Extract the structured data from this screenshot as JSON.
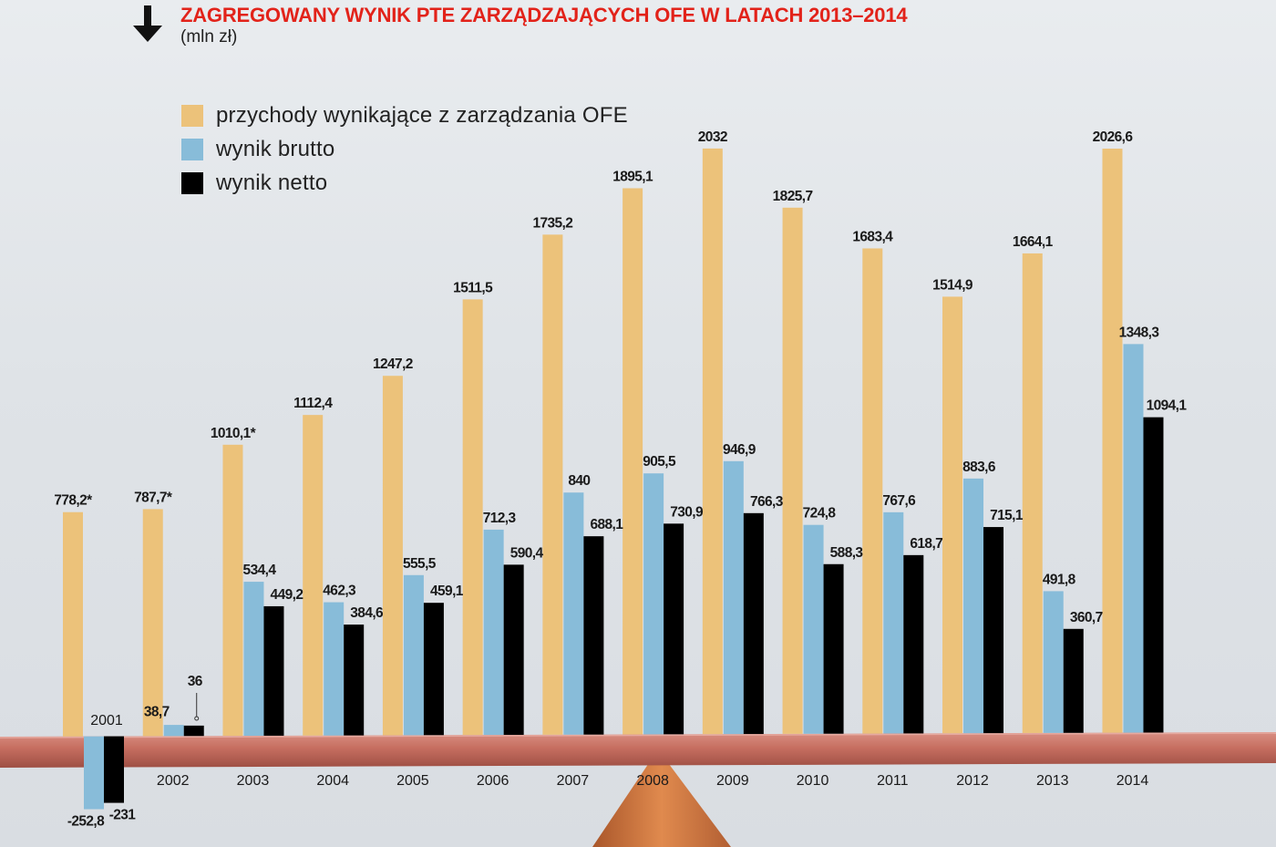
{
  "title": "ZAGREGOWANY WYNIK PTE ZARZĄDZAJĄCYCH OFE W LATACH 2013–2014",
  "subtitle": "(mln zł)",
  "colors": {
    "przychody": "#ecc27a",
    "brutto": "#88bcd9",
    "netto": "#000000",
    "title": "#e2231a",
    "beam": "#c66e60"
  },
  "legend": [
    {
      "label": "przychody wynikające z zarządzania OFE",
      "color": "#ecc27a"
    },
    {
      "label": "wynik brutto",
      "color": "#88bcd9"
    },
    {
      "label": "wynik netto",
      "color": "#000000"
    }
  ],
  "chart_data": {
    "type": "bar",
    "categories": [
      "2001",
      "2002",
      "2003",
      "2004",
      "2005",
      "2006",
      "2007",
      "2008",
      "2009",
      "2010",
      "2011",
      "2012",
      "2013",
      "2014"
    ],
    "series": [
      {
        "key": "przychody",
        "name": "przychody wynikające z zarządzania OFE",
        "values": [
          778.2,
          787.7,
          1010.1,
          1112.4,
          1247.2,
          1511.5,
          1735.2,
          1895.1,
          2032,
          1825.7,
          1683.4,
          1514.9,
          1664.1,
          2026.6
        ],
        "labels": [
          "778,2*",
          "787,7*",
          "1010,1*",
          "1112,4",
          "1247,2",
          "1511,5",
          "1735,2",
          "1895,1",
          "2032",
          "1825,7",
          "1683,4",
          "1514,9",
          "1664,1",
          "2026,6"
        ]
      },
      {
        "key": "brutto",
        "name": "wynik brutto",
        "values": [
          -252.8,
          38.7,
          534.4,
          462.3,
          555.5,
          712.3,
          840,
          905.5,
          946.9,
          724.8,
          767.6,
          883.6,
          491.8,
          1348.3
        ],
        "labels": [
          "-252,8",
          "38,7",
          "534,4",
          "462,3",
          "555,5",
          "712,3",
          "840",
          "905,5",
          "946,9",
          "724,8",
          "767,6",
          "883,6",
          "491,8",
          "1348,3"
        ]
      },
      {
        "key": "netto",
        "name": "wynik netto",
        "values": [
          -231,
          36,
          449.2,
          384.6,
          459.1,
          590.4,
          688.1,
          730.9,
          766.3,
          588.3,
          618.7,
          715.1,
          360.7,
          1094.1
        ],
        "labels": [
          "-231",
          "36",
          "449,2",
          "384,6",
          "459,1",
          "590,4",
          "688,1",
          "730,9",
          "766,3",
          "588,3",
          "618,7",
          "715,1",
          "360,7",
          "1094,1"
        ]
      }
    ],
    "title": "ZAGREGOWANY WYNIK PTE ZARZĄDZAJĄCYCH OFE W LATACH 2013–2014",
    "ylabel": "(mln zł)",
    "grid": false,
    "legend_position": "top-left"
  }
}
